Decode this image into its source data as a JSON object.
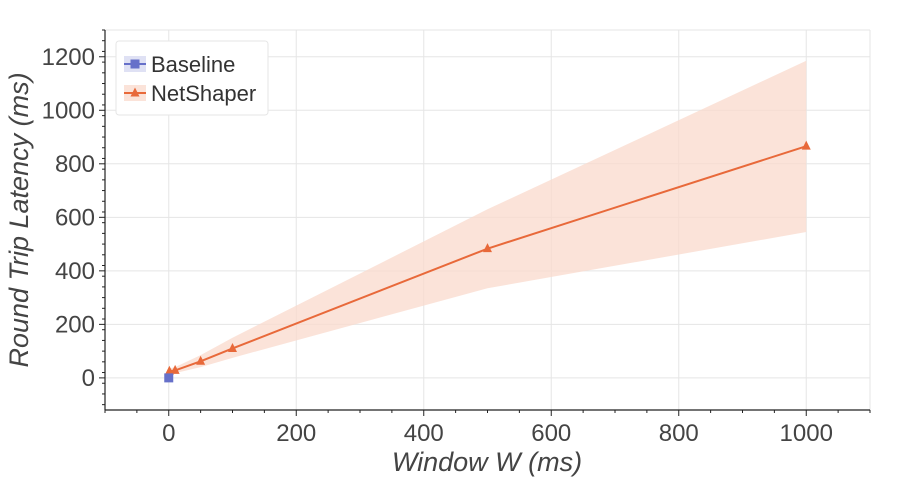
{
  "chart_data": {
    "type": "line",
    "xlabel": "Window W (ms)",
    "ylabel": "Round Trip Latency (ms)",
    "xlim": [
      -100,
      1100
    ],
    "ylim": [
      -120,
      1300
    ],
    "xticks": [
      0,
      200,
      400,
      600,
      800,
      1000
    ],
    "xtick_labels": [
      "0",
      "200",
      "400",
      "600",
      "800",
      "1000"
    ],
    "yticks": [
      0,
      200,
      400,
      600,
      800,
      1000,
      1200
    ],
    "ytick_labels": [
      "0",
      "200",
      "400",
      "600",
      "800",
      "1000",
      "1200"
    ],
    "grid": true,
    "legend_position": "top-left",
    "series": [
      {
        "name": "Baseline",
        "marker": "square",
        "color": "#6670c9",
        "x": [
          0
        ],
        "y": [
          0
        ]
      },
      {
        "name": "NetShaper",
        "marker": "triangle",
        "color": "#e8693a",
        "band_color": "#f9d9cc",
        "x": [
          1,
          10,
          50,
          100,
          500,
          1000
        ],
        "y": [
          25,
          28,
          62,
          110,
          483,
          866
        ],
        "y_lower": [
          15,
          18,
          40,
          75,
          335,
          545
        ],
        "y_upper": [
          35,
          40,
          85,
          150,
          630,
          1185
        ]
      }
    ]
  }
}
